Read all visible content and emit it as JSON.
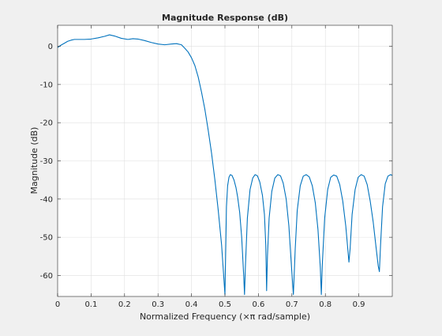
{
  "chart_data": {
    "type": "line",
    "title": "Magnitude Response (dB)",
    "xlabel": "Normalized Frequency (×π rad/sample)",
    "ylabel": "Magnitude (dB)",
    "xlim": [
      0,
      1
    ],
    "ylim": [
      -65.5,
      5.5
    ],
    "xticks": [
      0,
      0.1,
      0.2,
      0.3,
      0.4,
      0.5,
      0.6,
      0.7,
      0.8,
      0.9
    ],
    "xtick_labels": [
      "0",
      "0.1",
      "0.2",
      "0.3",
      "0.4",
      "0.5",
      "0.6",
      "0.7",
      "0.8",
      "0.9"
    ],
    "yticks": [
      0,
      -10,
      -20,
      -30,
      -40,
      -50,
      -60
    ],
    "ytick_labels": [
      "0",
      "-10",
      "-20",
      "-30",
      "-40",
      "-50",
      "-60"
    ],
    "grid": true,
    "series": [
      {
        "color": "#0072bd",
        "x": [
          0,
          0.01,
          0.02,
          0.03,
          0.04,
          0.05,
          0.06,
          0.07,
          0.08,
          0.1,
          0.12,
          0.14,
          0.155,
          0.17,
          0.19,
          0.21,
          0.225,
          0.24,
          0.26,
          0.28,
          0.3,
          0.32,
          0.34,
          0.355,
          0.37,
          0.38,
          0.39,
          0.4,
          0.41,
          0.42,
          0.43,
          0.44,
          0.45,
          0.46,
          0.47,
          0.48,
          0.49,
          0.5,
          0.5045,
          0.508,
          0.512,
          0.516,
          0.521,
          0.527,
          0.533,
          0.538,
          0.544,
          0.55,
          0.556,
          0.5585,
          0.561,
          0.567,
          0.575,
          0.583,
          0.59,
          0.597,
          0.604,
          0.612,
          0.618,
          0.622,
          0.6245,
          0.627,
          0.632,
          0.64,
          0.649,
          0.658,
          0.666,
          0.674,
          0.683,
          0.691,
          0.699,
          0.7045,
          0.71,
          0.716,
          0.725,
          0.734,
          0.743,
          0.752,
          0.761,
          0.77,
          0.778,
          0.785,
          0.788,
          0.791,
          0.798,
          0.807,
          0.816,
          0.825,
          0.834,
          0.843,
          0.852,
          0.861,
          0.867,
          0.8705,
          0.874,
          0.88,
          0.889,
          0.898,
          0.907,
          0.916,
          0.925,
          0.934,
          0.943,
          0.952,
          0.958,
          0.9615,
          0.965,
          0.971,
          0.979,
          0.987,
          0.995,
          1.0
        ],
        "y": [
          -0.3,
          0.3,
          0.8,
          1.3,
          1.6,
          1.8,
          1.8,
          1.8,
          1.8,
          1.9,
          2.2,
          2.6,
          3.0,
          2.7,
          2.1,
          1.8,
          2.0,
          1.9,
          1.5,
          1.0,
          0.6,
          0.4,
          0.6,
          0.7,
          0.4,
          -0.5,
          -1.5,
          -3.0,
          -5.0,
          -8.0,
          -12.0,
          -16.5,
          -22.0,
          -28.0,
          -35.0,
          -43.0,
          -52.0,
          -65.0,
          -42.0,
          -36.5,
          -34.3,
          -33.6,
          -33.8,
          -35.0,
          -37.0,
          -39.5,
          -43.5,
          -50.0,
          -60.0,
          -65.0,
          -58.0,
          -45.0,
          -37.5,
          -34.5,
          -33.6,
          -33.9,
          -35.5,
          -39.0,
          -44.0,
          -52.0,
          -64.0,
          -55.0,
          -45.0,
          -38.0,
          -34.5,
          -33.6,
          -33.9,
          -35.8,
          -40.0,
          -47.0,
          -58.0,
          -65.0,
          -53.0,
          -43.0,
          -36.5,
          -34.0,
          -33.6,
          -34.2,
          -36.5,
          -41.0,
          -48.0,
          -58.0,
          -65.0,
          -57.0,
          -45.0,
          -37.5,
          -34.3,
          -33.7,
          -34.0,
          -36.2,
          -40.5,
          -47.0,
          -53.0,
          -56.5,
          -53.0,
          -44.0,
          -37.5,
          -34.3,
          -33.6,
          -34.0,
          -36.2,
          -40.5,
          -46.0,
          -53.0,
          -57.5,
          -59.0,
          -52.0,
          -42.0,
          -36.0,
          -34.0,
          -33.6,
          -33.8
        ]
      }
    ]
  }
}
